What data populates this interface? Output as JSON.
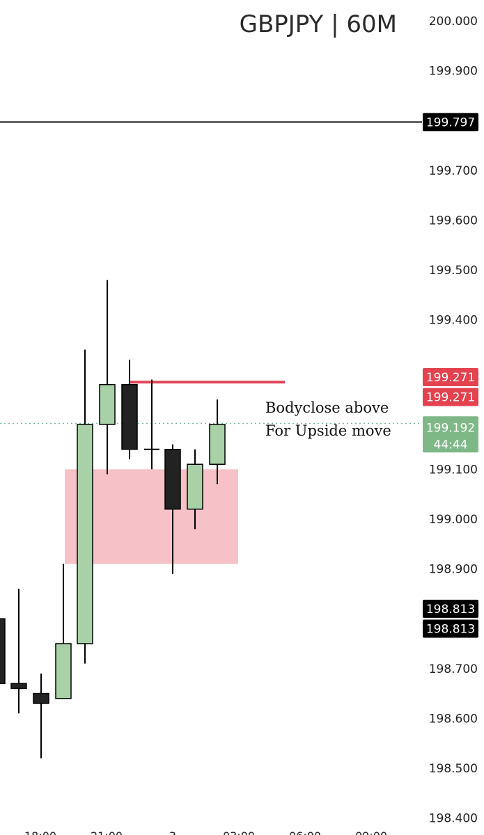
{
  "chart_data": {
    "type": "candlestick",
    "title": "GBPJPY | 60M",
    "ylim": [
      198.4,
      200.0
    ],
    "y_ticks": [
      "200.000",
      "199.900",
      "199.700",
      "199.600",
      "199.500",
      "199.400",
      "199.100",
      "199.000",
      "198.900",
      "198.700",
      "198.600",
      "198.500",
      "198.400"
    ],
    "x_ticks": [
      "18:00",
      "21:00",
      "3",
      "03:00",
      "06:00",
      "09:00"
    ],
    "candles": [
      {
        "open": 198.67,
        "high": 198.86,
        "low": 198.61,
        "close": 198.66
      },
      {
        "open": 198.65,
        "high": 198.69,
        "low": 198.52,
        "close": 198.63
      },
      {
        "open": 198.64,
        "high": 198.91,
        "low": 198.64,
        "close": 198.75
      },
      {
        "open": 198.75,
        "high": 199.34,
        "low": 198.71,
        "close": 199.19
      },
      {
        "open": 199.19,
        "high": 199.48,
        "low": 199.09,
        "close": 199.27
      },
      {
        "open": 199.27,
        "high": 199.32,
        "low": 199.12,
        "close": 199.14
      },
      {
        "open": 199.14,
        "high": 199.28,
        "low": 199.1,
        "close": 199.14
      },
      {
        "open": 199.14,
        "high": 199.15,
        "low": 198.89,
        "close": 199.02
      },
      {
        "open": 199.02,
        "high": 199.14,
        "low": 198.98,
        "close": 199.11
      },
      {
        "open": 199.11,
        "high": 199.24,
        "low": 199.07,
        "close": 199.19
      }
    ],
    "partial_candle": {
      "open": 198.8,
      "close": 198.67
    },
    "horizontal_lines": [
      {
        "price": 199.797,
        "color": "#111111",
        "style": "solid"
      },
      {
        "price": 199.192,
        "color": "#7fb89a",
        "style": "dotted"
      }
    ],
    "resistance_line": {
      "price": 199.275,
      "color": "#e0455a"
    },
    "zone": {
      "top": 199.1,
      "bottom": 198.91,
      "color": "#f7c1c8"
    },
    "price_badges": [
      {
        "text": "199.797",
        "price": 199.797,
        "bg": "#000000"
      },
      {
        "text": "199.271",
        "price": 199.285,
        "bg": "#e3424f"
      },
      {
        "text": "199.271",
        "price": 199.245,
        "bg": "#e3424f"
      },
      {
        "text": "199.192",
        "text2": "44:44",
        "price": 199.17,
        "bg": "#7fb887"
      },
      {
        "text": "198.813",
        "price": 198.82,
        "bg": "#000000"
      },
      {
        "text": "198.813",
        "price": 198.78,
        "bg": "#000000"
      }
    ],
    "annotation": {
      "line1": "Bodyclose above",
      "line2": "For Upside move"
    },
    "colors": {
      "bull_fill": "#a8d1a8",
      "bear_fill": "#222222",
      "stroke": "#000000"
    }
  }
}
